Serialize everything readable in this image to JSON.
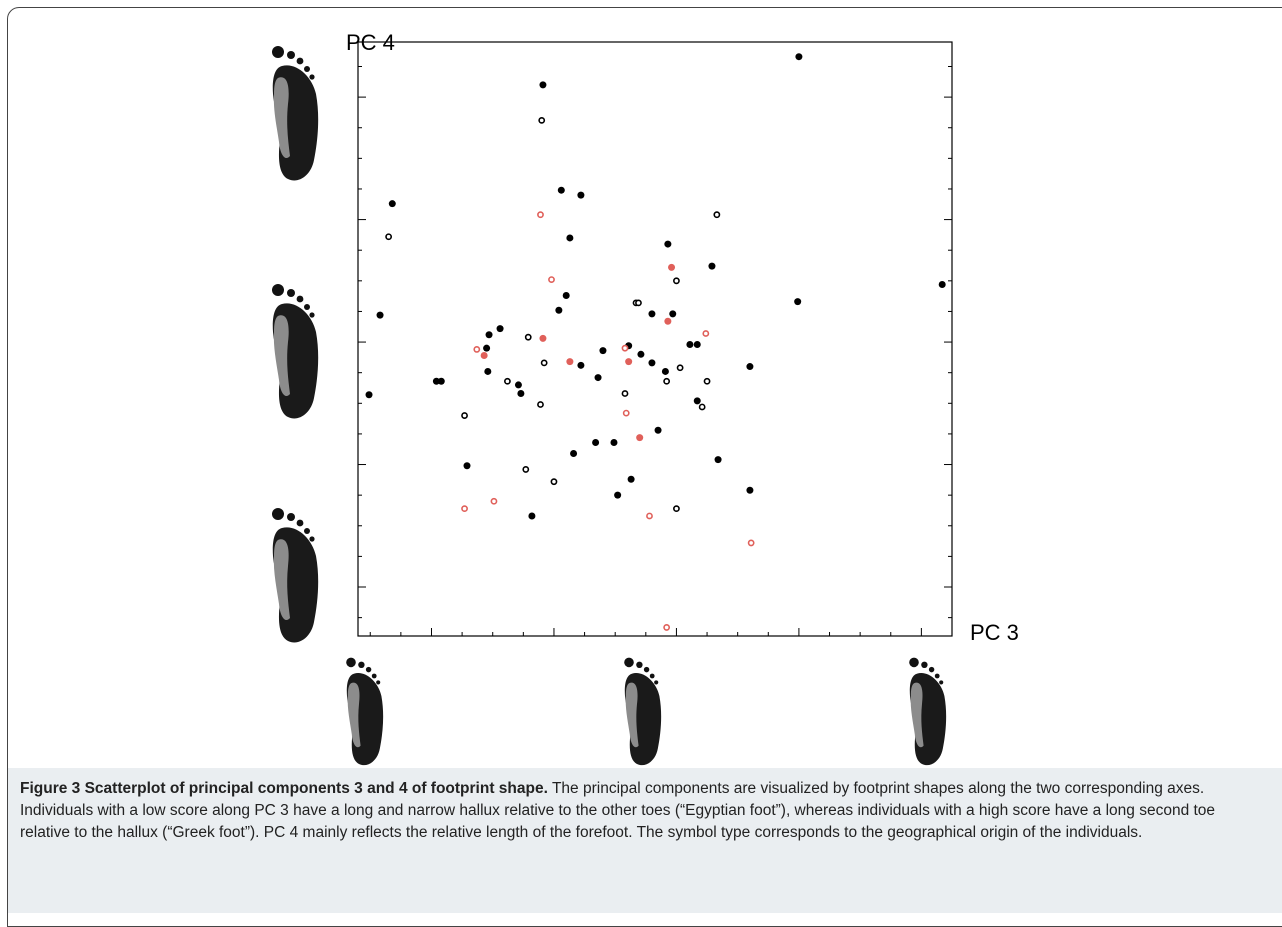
{
  "chart_data": {
    "type": "scatter",
    "xlabel": "PC 3",
    "ylabel": "PC 4",
    "xlim": [
      -2.6,
      2.25
    ],
    "ylim": [
      -2.4,
      2.45
    ],
    "xticks": [
      -2.5,
      -2.25,
      -2,
      -1.75,
      -1.5,
      -1.25,
      -1,
      -0.75,
      -0.5,
      -0.25,
      0,
      0.25,
      0.5,
      0.75,
      1,
      1.25,
      1.5,
      1.75,
      2,
      2.25
    ],
    "yticks": [
      -2.25,
      -2,
      -1.75,
      -1.5,
      -1.25,
      -1,
      -0.75,
      -0.5,
      -0.25,
      0,
      0.25,
      0.5,
      0.75,
      1,
      1.25,
      1.5,
      1.75,
      2,
      2.25
    ],
    "grid": false,
    "series": [
      {
        "color": "#000000",
        "filled": true,
        "x": [
          -1.09,
          1.0,
          -2.32,
          -0.94,
          -0.78,
          -0.87,
          -0.07,
          0.29,
          -0.9,
          -0.96,
          0.99,
          2.17,
          -2.42,
          -0.2,
          -0.03,
          -1.44,
          -1.53,
          -1.55,
          -0.39,
          -0.6,
          -0.29,
          0.11,
          0.17,
          -0.2,
          -0.78,
          -0.09,
          0.6,
          -2.51,
          -1.96,
          -1.92,
          -1.54,
          -1.29,
          -1.27,
          -0.64,
          0.17,
          -1.71,
          -0.84,
          -0.66,
          -0.51,
          -0.15,
          0.34,
          -0.37,
          -0.48,
          0.6,
          -1.18
        ],
        "values": [
          2.1,
          2.33,
          1.13,
          1.24,
          1.2,
          0.85,
          0.8,
          0.62,
          0.38,
          0.26,
          0.33,
          0.47,
          0.22,
          0.23,
          0.23,
          0.11,
          0.06,
          -0.05,
          -0.03,
          -0.07,
          -0.1,
          -0.02,
          -0.02,
          -0.17,
          -0.19,
          -0.24,
          -0.2,
          -0.43,
          -0.32,
          -0.32,
          -0.24,
          -0.35,
          -0.42,
          -0.29,
          -0.48,
          -1.01,
          -0.91,
          -0.82,
          -0.82,
          -0.72,
          -0.96,
          -1.12,
          -1.25,
          -1.21,
          -1.42
        ]
      },
      {
        "color": "#000000",
        "filled": false,
        "x": [
          -1.1,
          0.33,
          -2.35,
          -0.33,
          -0.31,
          0.0,
          -1.21,
          -1.08,
          0.03,
          -1.38,
          -0.08,
          0.25,
          -0.42,
          -1.11,
          0.21,
          -1.73,
          -1.23,
          -1.0,
          0.0
        ],
        "values": [
          1.81,
          1.04,
          0.86,
          0.32,
          0.32,
          0.5,
          0.04,
          -0.17,
          -0.21,
          -0.32,
          -0.32,
          -0.32,
          -0.42,
          -0.51,
          -0.53,
          -0.6,
          -1.04,
          -1.14,
          -1.36
        ]
      },
      {
        "color": "#e0605a",
        "filled": false,
        "x": [
          -1.11,
          -1.02,
          0.24,
          -1.63,
          -0.42,
          -0.41,
          -1.49,
          -1.73,
          -0.22,
          0.61,
          -0.08
        ],
        "values": [
          1.04,
          0.51,
          0.07,
          -0.06,
          -0.05,
          -0.58,
          -1.3,
          -1.36,
          -1.42,
          -1.64,
          -2.33
        ]
      },
      {
        "color": "#e0605a",
        "filled": true,
        "x": [
          -0.04,
          -1.09,
          -1.57,
          -0.87,
          -0.39,
          -0.07,
          -0.3
        ],
        "values": [
          0.61,
          0.03,
          -0.11,
          -0.16,
          -0.16,
          0.17,
          -0.78
        ]
      }
    ]
  },
  "caption": {
    "title": "Figure 3 Scatterplot of principal components 3 and 4 of footprint shape.",
    "text": "The principal components are visualized by footprint shapes along the two corresponding axes. Individuals with a low score along PC 3 have a long and narrow hallux relative to the other toes (“Egyptian foot”), whereas individuals with a high score have a long second toe relative to the hallux (“Greek foot”). PC 4 mainly reflects the relative length of the forefoot. The symbol type corresponds to the geographical origin of the individuals."
  }
}
